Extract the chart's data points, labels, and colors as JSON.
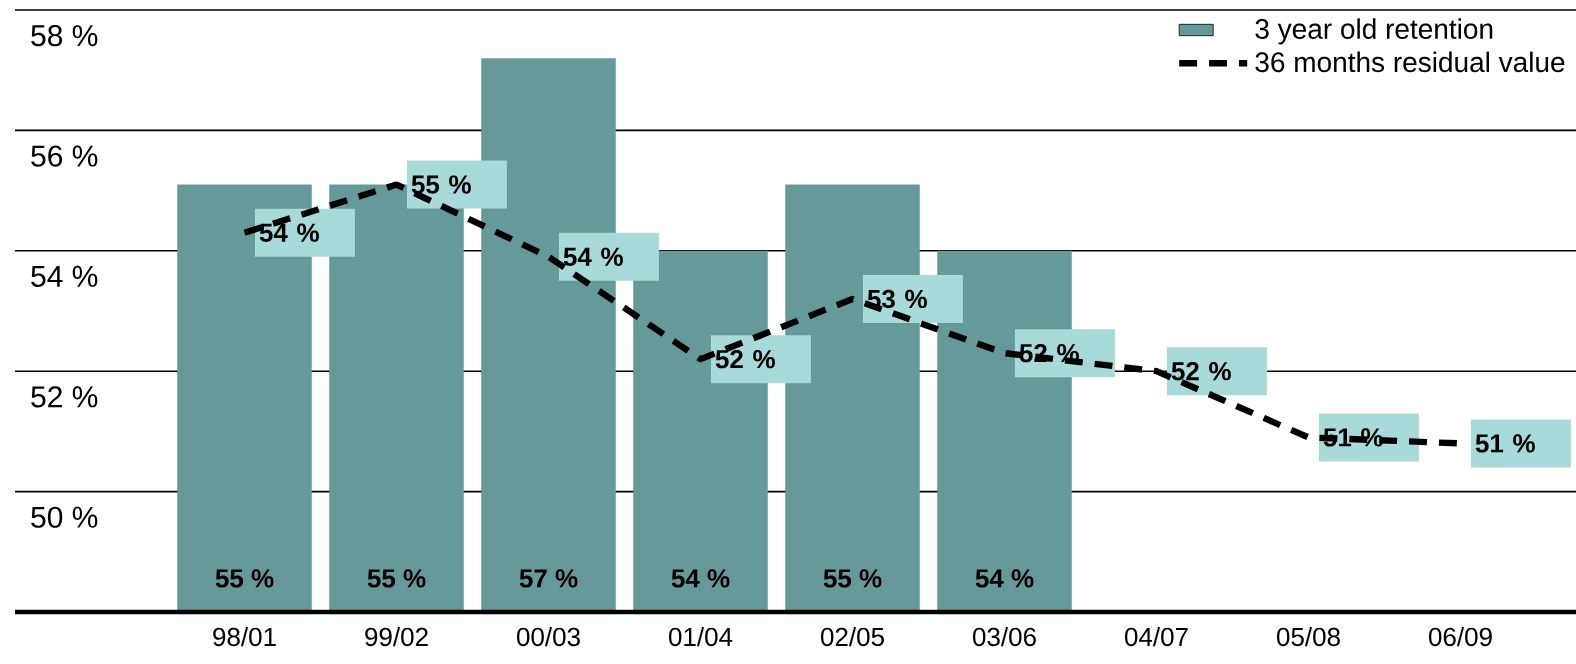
{
  "chart_data": {
    "type": "bar",
    "categories": [
      "98/01",
      "99/02",
      "00/03",
      "01/04",
      "02/05",
      "03/06",
      "04/07",
      "05/08",
      "06/09"
    ],
    "series": [
      {
        "name": "3 year old retention",
        "color": "#669999",
        "values": [
          55.1,
          55.1,
          57.2,
          54.0,
          55.1,
          54.0,
          null,
          null,
          null
        ],
        "value_labels": [
          "55 %",
          "55 %",
          "57 %",
          "54 %",
          "55 %",
          "54 %",
          null,
          null,
          null
        ]
      },
      {
        "name": "36 months residual value",
        "type": "line",
        "line_style": "dashed",
        "color": "#000000",
        "values": [
          54.3,
          55.1,
          53.9,
          52.2,
          53.2,
          52.3,
          52.0,
          50.9,
          50.8
        ],
        "value_labels": [
          "54 %",
          "55 %",
          "54 %",
          "52 %",
          "53 %",
          "52 %",
          "52 %",
          "51 %",
          "51 %"
        ]
      }
    ],
    "ylim": [
      48,
      58
    ],
    "yticks": [
      {
        "value": 50,
        "label": "50 %"
      },
      {
        "value": 52,
        "label": "52 %"
      },
      {
        "value": 54,
        "label": "54 %"
      },
      {
        "value": 56,
        "label": "56 %"
      },
      {
        "value": 58,
        "label": "58 %"
      }
    ],
    "grid": "y",
    "legend": "top right",
    "marker": "none"
  }
}
